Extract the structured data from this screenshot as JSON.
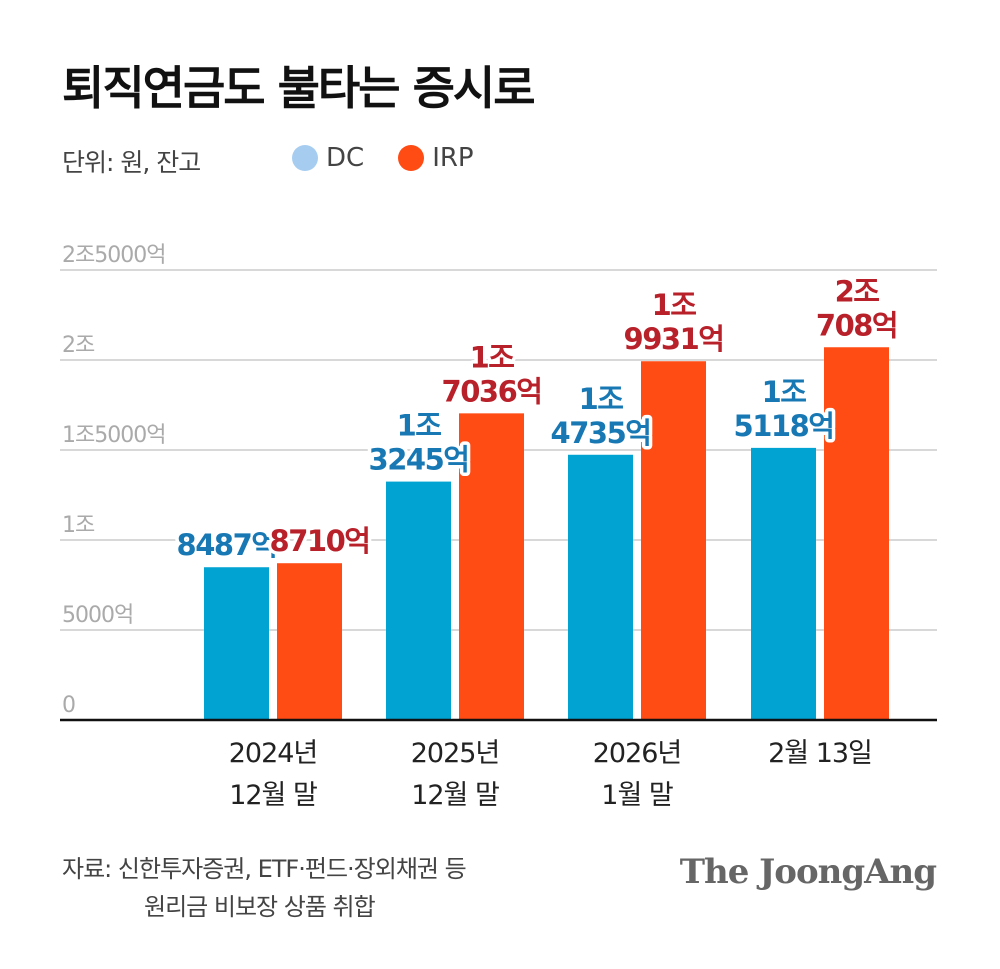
{
  "title": "퇴직연금도 불타는 증시로",
  "unit_label": "단위: 원, 잔고",
  "legend": [
    {
      "label": "DC",
      "color": "#a6cdf0"
    },
    {
      "label": "IRP",
      "color": "#ff4b14"
    }
  ],
  "chart_data": {
    "type": "bar",
    "title": "퇴직연금도 불타는 증시로",
    "xlabel": "",
    "ylabel": "원",
    "ylim": [
      0,
      25000
    ],
    "y_ticks": [
      {
        "value": 0,
        "label": "0"
      },
      {
        "value": 5000,
        "label": "5000억"
      },
      {
        "value": 10000,
        "label": "1조"
      },
      {
        "value": 15000,
        "label": "1조5000억"
      },
      {
        "value": 20000,
        "label": "2조"
      },
      {
        "value": 25000,
        "label": "2조5000억"
      }
    ],
    "categories": [
      {
        "line1": "2024년",
        "line2": "12월 말"
      },
      {
        "line1": "2025년",
        "line2": "12월 말"
      },
      {
        "line1": "2026년",
        "line2": "1월 말"
      },
      {
        "line1": "2월 13일",
        "line2": ""
      }
    ],
    "series": [
      {
        "name": "DC",
        "color": "#00a3d2",
        "label_color": "#1878b4",
        "values": [
          8487,
          13245,
          14735,
          15118
        ],
        "labels": [
          [
            "8487억"
          ],
          [
            "1조",
            "3245억"
          ],
          [
            "1조",
            "4735억"
          ],
          [
            "1조",
            "5118억"
          ]
        ]
      },
      {
        "name": "IRP",
        "color": "#ff4b14",
        "label_color": "#b8202a",
        "values": [
          8710,
          17036,
          19931,
          20708
        ],
        "labels": [
          [
            "8710억"
          ],
          [
            "1조",
            "7036억"
          ],
          [
            "1조",
            "9931억"
          ],
          [
            "2조",
            "708억"
          ]
        ]
      }
    ],
    "units": "억원"
  },
  "footer": {
    "source_line1": "자료: 신한투자증권, ETF·펀드·장외채권 등",
    "source_line2": "원리금 비보장 상품 취합",
    "brand": "The JoongAng"
  }
}
